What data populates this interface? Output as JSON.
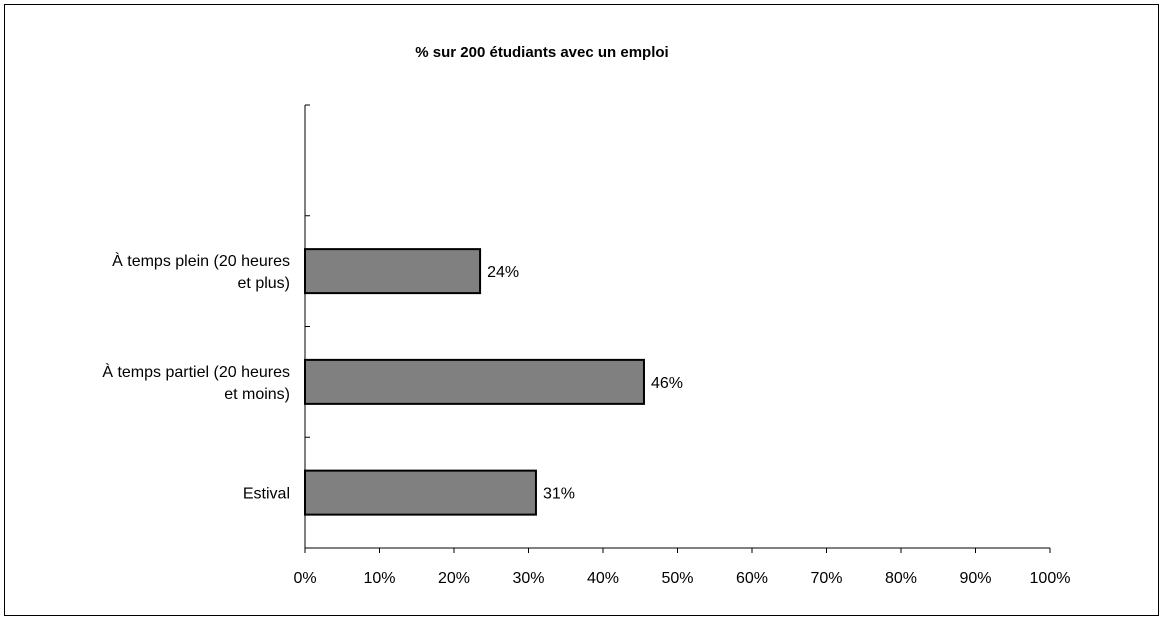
{
  "chart_data": {
    "type": "bar",
    "orientation": "horizontal",
    "title": "% sur 200 étudiants avec un emploi",
    "categories": [
      [
        "À temps plein (20 heures",
        "et plus)"
      ],
      [
        "À temps partiel (20 heures",
        "et moins)"
      ],
      [
        "Estival"
      ]
    ],
    "values": [
      23.5,
      45.5,
      31
    ],
    "data_labels": [
      "24%",
      "46%",
      "31%"
    ],
    "xlim": [
      0,
      100
    ],
    "x_ticks": [
      0,
      10,
      20,
      30,
      40,
      50,
      60,
      70,
      80,
      90,
      100
    ],
    "x_tick_labels": [
      "0%",
      "10%",
      "20%",
      "30%",
      "40%",
      "50%",
      "60%",
      "70%",
      "80%",
      "90%",
      "100%"
    ],
    "grid": false,
    "legend": "none",
    "colors": {
      "bar_fill": "#808080",
      "bar_stroke": "#000000"
    }
  }
}
